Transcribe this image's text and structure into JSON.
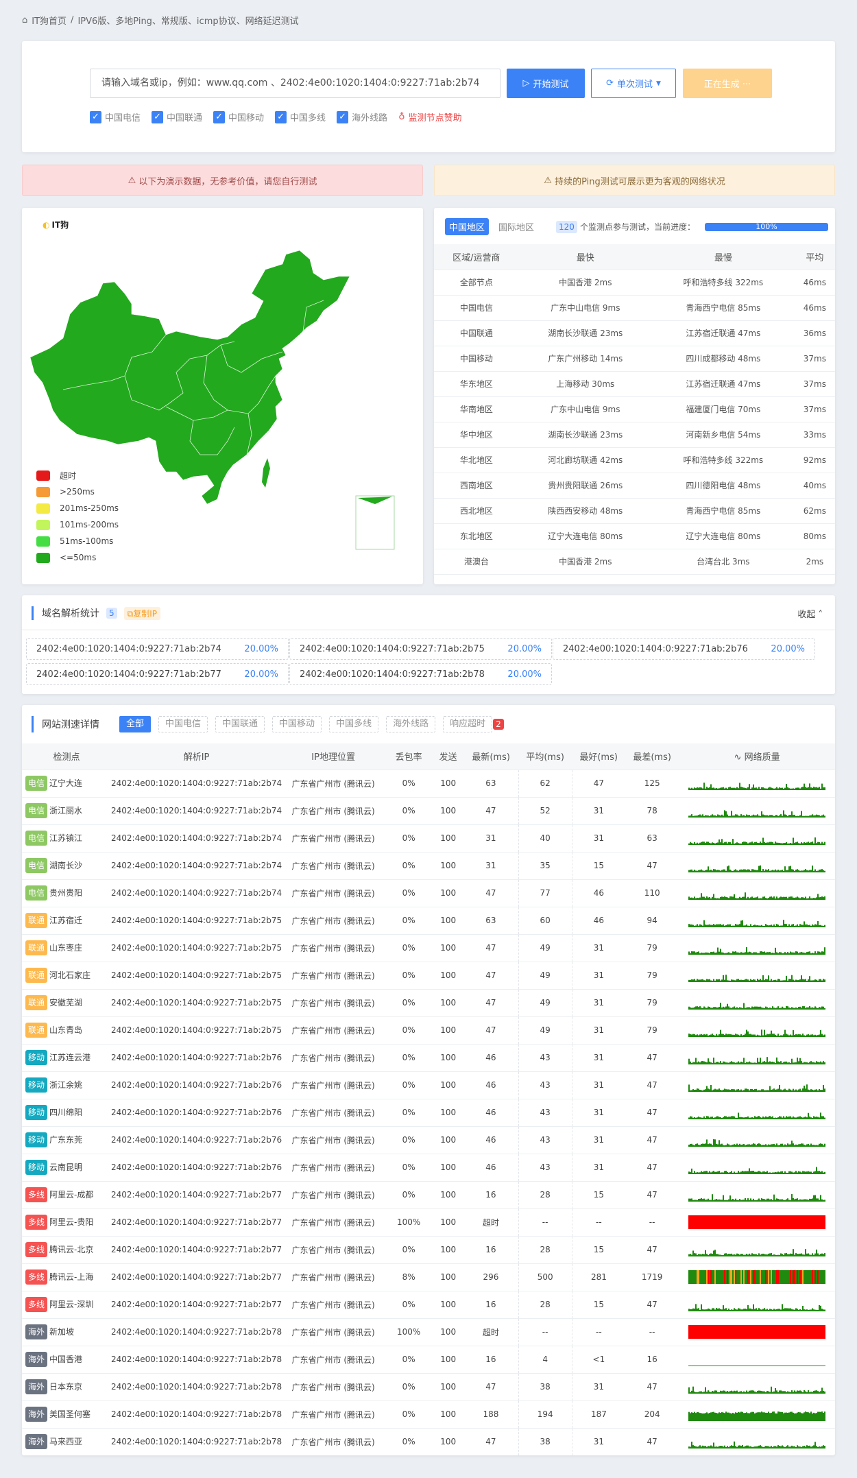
{
  "breadcrumb": {
    "home": "IT狗首页",
    "sep": "/",
    "current": "IPV6版、多地Ping、常规版、icmp协议、网络延迟测试"
  },
  "search": {
    "placeholder": "请输入域名或ip，例如：www.qq.com 、2402:4e00:1020:1404:0:9227:71ab:2b74",
    "start": "开始测试",
    "mode": "单次测试",
    "generating": "正在生成 ···"
  },
  "filters": [
    "中国电信",
    "中国联通",
    "中国移动",
    "中国多线",
    "海外线路"
  ],
  "sponsor": "监测节点赞助",
  "alerts": {
    "left": "以下为演示数据，无参考价值，请您自行测试",
    "right": "持续的Ping测试可展示更为客观的网络状况"
  },
  "map": {
    "logo": "IT狗",
    "legend": [
      {
        "label": "超时",
        "color": "#e41a1a"
      },
      {
        "label": ">250ms",
        "color": "#f59a35"
      },
      {
        "label": "201ms-250ms",
        "color": "#f4ea44"
      },
      {
        "label": "101ms-200ms",
        "color": "#c2f55c"
      },
      {
        "label": "51ms-100ms",
        "color": "#44dd44"
      },
      {
        "label": "<=50ms",
        "color": "#23a91e"
      }
    ]
  },
  "region": {
    "tabs": [
      "中国地区",
      "国际地区"
    ],
    "count": "120",
    "count_text": "个监测点参与测试，当前进度：",
    "progress": 100,
    "progress_label": "100%",
    "headers": [
      "区域/运营商",
      "最快",
      "最慢",
      "平均"
    ],
    "rows": [
      [
        "全部节点",
        "中国香港 2ms",
        "呼和浩特多线 322ms",
        "46ms"
      ],
      [
        "中国电信",
        "广东中山电信 9ms",
        "青海西宁电信 85ms",
        "46ms"
      ],
      [
        "中国联通",
        "湖南长沙联通 23ms",
        "江苏宿迁联通 47ms",
        "36ms"
      ],
      [
        "中国移动",
        "广东广州移动 14ms",
        "四川成都移动 48ms",
        "37ms"
      ],
      [
        "华东地区",
        "上海移动 30ms",
        "江苏宿迁联通 47ms",
        "37ms"
      ],
      [
        "华南地区",
        "广东中山电信 9ms",
        "福建厦门电信 70ms",
        "37ms"
      ],
      [
        "华中地区",
        "湖南长沙联通 23ms",
        "河南新乡电信 54ms",
        "33ms"
      ],
      [
        "华北地区",
        "河北廊坊联通 42ms",
        "呼和浩特多线 322ms",
        "92ms"
      ],
      [
        "西南地区",
        "贵州贵阳联通 26ms",
        "四川德阳电信 48ms",
        "40ms"
      ],
      [
        "西北地区",
        "陕西西安移动 48ms",
        "青海西宁电信 85ms",
        "62ms"
      ],
      [
        "东北地区",
        "辽宁大连电信 80ms",
        "辽宁大连电信 80ms",
        "80ms"
      ],
      [
        "港澳台",
        "中国香港 2ms",
        "台湾台北 3ms",
        "2ms"
      ]
    ]
  },
  "dns": {
    "title": "域名解析统计",
    "count": "5",
    "copy": "复制IP",
    "collapse": "收起",
    "items": [
      {
        "ip": "2402:4e00:1020:1404:0:9227:71ab:2b74",
        "pct": "20.00%"
      },
      {
        "ip": "2402:4e00:1020:1404:0:9227:71ab:2b75",
        "pct": "20.00%"
      },
      {
        "ip": "2402:4e00:1020:1404:0:9227:71ab:2b76",
        "pct": "20.00%"
      },
      {
        "ip": "2402:4e00:1020:1404:0:9227:71ab:2b77",
        "pct": "20.00%"
      },
      {
        "ip": "2402:4e00:1020:1404:0:9227:71ab:2b78",
        "pct": "20.00%"
      }
    ]
  },
  "detail": {
    "title": "网站测速详情",
    "tabs": [
      "全部",
      "中国电信",
      "中国联通",
      "中国移动",
      "中国多线",
      "海外线路",
      "响应超时"
    ],
    "timeout_count": "2",
    "headers": [
      "检测点",
      "解析IP",
      "IP地理位置",
      "丢包率",
      "发送",
      "最新(ms)",
      "平均(ms)",
      "最好(ms)",
      "最差(ms)",
      "网络质量"
    ],
    "tag_colors": {
      "电信": "#8dc863",
      "联通": "#fdb94e",
      "移动": "#14a9c0",
      "多线": "#f55252",
      "海外": "#6b7280"
    },
    "rows": [
      [
        "电信",
        "辽宁大连",
        "2402:4e00:1020:1404:0:9227:71ab:2b74",
        "广东省广州市 (腾讯云)",
        "0%",
        "100",
        "63",
        "62",
        "47",
        "125",
        "good"
      ],
      [
        "电信",
        "浙江丽水",
        "2402:4e00:1020:1404:0:9227:71ab:2b74",
        "广东省广州市 (腾讯云)",
        "0%",
        "100",
        "47",
        "52",
        "31",
        "78",
        "good"
      ],
      [
        "电信",
        "江苏镇江",
        "2402:4e00:1020:1404:0:9227:71ab:2b74",
        "广东省广州市 (腾讯云)",
        "0%",
        "100",
        "31",
        "40",
        "31",
        "63",
        "good"
      ],
      [
        "电信",
        "湖南长沙",
        "2402:4e00:1020:1404:0:9227:71ab:2b74",
        "广东省广州市 (腾讯云)",
        "0%",
        "100",
        "31",
        "35",
        "15",
        "47",
        "good"
      ],
      [
        "电信",
        "贵州贵阳",
        "2402:4e00:1020:1404:0:9227:71ab:2b74",
        "广东省广州市 (腾讯云)",
        "0%",
        "100",
        "47",
        "77",
        "46",
        "110",
        "good"
      ],
      [
        "联通",
        "江苏宿迁",
        "2402:4e00:1020:1404:0:9227:71ab:2b75",
        "广东省广州市 (腾讯云)",
        "0%",
        "100",
        "63",
        "60",
        "46",
        "94",
        "good"
      ],
      [
        "联通",
        "山东枣庄",
        "2402:4e00:1020:1404:0:9227:71ab:2b75",
        "广东省广州市 (腾讯云)",
        "0%",
        "100",
        "47",
        "49",
        "31",
        "79",
        "good"
      ],
      [
        "联通",
        "河北石家庄",
        "2402:4e00:1020:1404:0:9227:71ab:2b75",
        "广东省广州市 (腾讯云)",
        "0%",
        "100",
        "47",
        "49",
        "31",
        "79",
        "good"
      ],
      [
        "联通",
        "安徽芜湖",
        "2402:4e00:1020:1404:0:9227:71ab:2b75",
        "广东省广州市 (腾讯云)",
        "0%",
        "100",
        "47",
        "49",
        "31",
        "79",
        "good"
      ],
      [
        "联通",
        "山东青岛",
        "2402:4e00:1020:1404:0:9227:71ab:2b75",
        "广东省广州市 (腾讯云)",
        "0%",
        "100",
        "47",
        "49",
        "31",
        "79",
        "good"
      ],
      [
        "移动",
        "江苏连云港",
        "2402:4e00:1020:1404:0:9227:71ab:2b76",
        "广东省广州市 (腾讯云)",
        "0%",
        "100",
        "46",
        "43",
        "31",
        "47",
        "good"
      ],
      [
        "移动",
        "浙江余姚",
        "2402:4e00:1020:1404:0:9227:71ab:2b76",
        "广东省广州市 (腾讯云)",
        "0%",
        "100",
        "46",
        "43",
        "31",
        "47",
        "good"
      ],
      [
        "移动",
        "四川绵阳",
        "2402:4e00:1020:1404:0:9227:71ab:2b76",
        "广东省广州市 (腾讯云)",
        "0%",
        "100",
        "46",
        "43",
        "31",
        "47",
        "good"
      ],
      [
        "移动",
        "广东东莞",
        "2402:4e00:1020:1404:0:9227:71ab:2b76",
        "广东省广州市 (腾讯云)",
        "0%",
        "100",
        "46",
        "43",
        "31",
        "47",
        "good"
      ],
      [
        "移动",
        "云南昆明",
        "2402:4e00:1020:1404:0:9227:71ab:2b76",
        "广东省广州市 (腾讯云)",
        "0%",
        "100",
        "46",
        "43",
        "31",
        "47",
        "good"
      ],
      [
        "多线",
        "阿里云-成都",
        "2402:4e00:1020:1404:0:9227:71ab:2b77",
        "广东省广州市 (腾讯云)",
        "0%",
        "100",
        "16",
        "28",
        "15",
        "47",
        "good"
      ],
      [
        "多线",
        "阿里云-贵阳",
        "2402:4e00:1020:1404:0:9227:71ab:2b77",
        "广东省广州市 (腾讯云)",
        "100%",
        "100",
        "超时",
        "--",
        "--",
        "--",
        "timeout"
      ],
      [
        "多线",
        "腾讯云-北京",
        "2402:4e00:1020:1404:0:9227:71ab:2b77",
        "广东省广州市 (腾讯云)",
        "0%",
        "100",
        "16",
        "28",
        "15",
        "47",
        "good"
      ],
      [
        "多线",
        "腾讯云-上海",
        "2402:4e00:1020:1404:0:9227:71ab:2b77",
        "广东省广州市 (腾讯云)",
        "8%",
        "100",
        "296",
        "500",
        "281",
        "1719",
        "unstable"
      ],
      [
        "多线",
        "阿里云-深圳",
        "2402:4e00:1020:1404:0:9227:71ab:2b77",
        "广东省广州市 (腾讯云)",
        "0%",
        "100",
        "16",
        "28",
        "15",
        "47",
        "good"
      ],
      [
        "海外",
        "新加坡",
        "2402:4e00:1020:1404:0:9227:71ab:2b78",
        "广东省广州市 (腾讯云)",
        "100%",
        "100",
        "超时",
        "--",
        "--",
        "--",
        "timeout"
      ],
      [
        "海外",
        "中国香港",
        "2402:4e00:1020:1404:0:9227:71ab:2b78",
        "广东省广州市 (腾讯云)",
        "0%",
        "100",
        "16",
        "4",
        "<1",
        "16",
        "flat"
      ],
      [
        "海外",
        "日本东京",
        "2402:4e00:1020:1404:0:9227:71ab:2b78",
        "广东省广州市 (腾讯云)",
        "0%",
        "100",
        "47",
        "38",
        "31",
        "47",
        "good"
      ],
      [
        "海外",
        "美国圣何塞",
        "2402:4e00:1020:1404:0:9227:71ab:2b78",
        "广东省广州市 (腾讯云)",
        "0%",
        "100",
        "188",
        "194",
        "187",
        "204",
        "high"
      ],
      [
        "海外",
        "马来西亚",
        "2402:4e00:1020:1404:0:9227:71ab:2b78",
        "广东省广州市 (腾讯云)",
        "0%",
        "100",
        "47",
        "38",
        "31",
        "47",
        "good"
      ]
    ]
  }
}
